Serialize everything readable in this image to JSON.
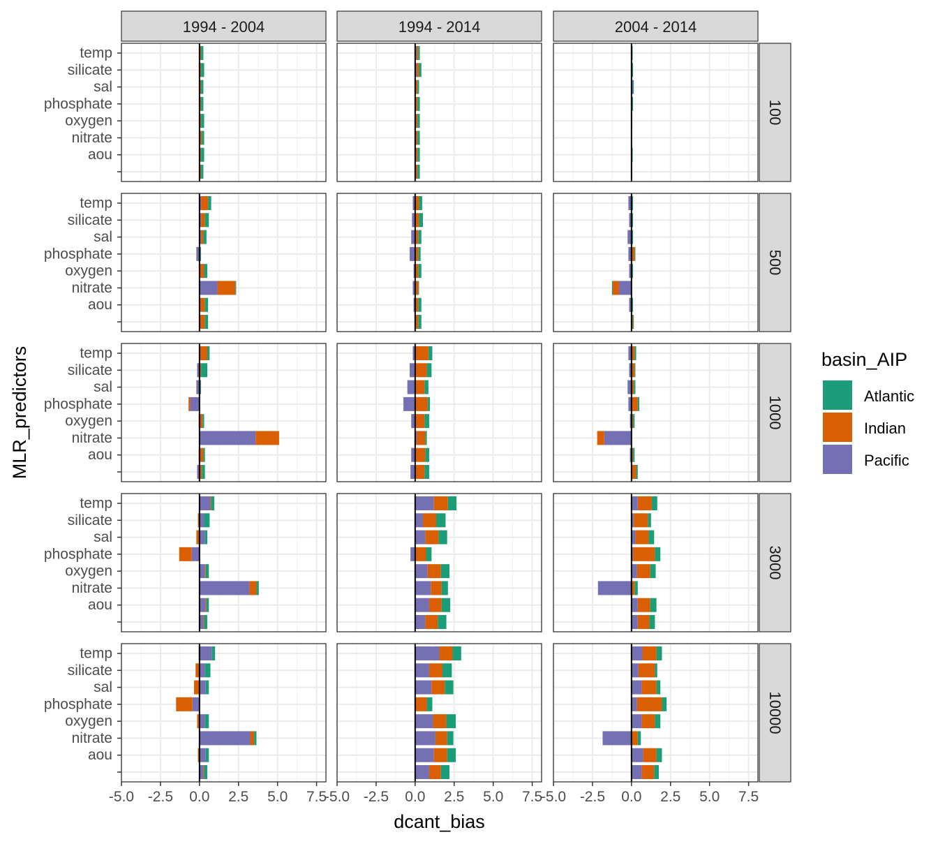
{
  "chart_data": {
    "type": "bar",
    "orientation": "horizontal",
    "stacked": true,
    "xlabel": "dcant_bias",
    "ylabel": "MLR_predictors",
    "xlim": [
      -5.0,
      8.1
    ],
    "xticks": [
      -5.0,
      -2.5,
      0.0,
      2.5,
      5.0,
      7.5
    ],
    "xtick_labels": [
      "-5.0",
      "-2.5",
      "0.0",
      "2.5",
      "5.0",
      "7.5"
    ],
    "grid": true,
    "legend": {
      "title": "basin_AIP",
      "position": "right"
    },
    "categories": [
      "temp",
      "silicate",
      "sal",
      "phosphate",
      "oxygen",
      "nitrate",
      "aou",
      ""
    ],
    "basins": [
      "Pacific",
      "Indian",
      "Atlantic"
    ],
    "colors": {
      "Atlantic": "#1B9E77",
      "Indian": "#D95F02",
      "Pacific": "#7570B3"
    },
    "col_labels": [
      "1994 - 2004",
      "1994 - 2014",
      "2004 - 2014"
    ],
    "row_labels": [
      "100",
      "500",
      "1000",
      "3000",
      "10000"
    ],
    "panels": [
      [
        {
          "Pacific": [
            0.05,
            0.05,
            0.05,
            0.05,
            0.05,
            0.05,
            0.05,
            0.05
          ],
          "Indian": [
            0.05,
            0.05,
            0.05,
            0.05,
            0.05,
            0.1,
            0.05,
            0.05
          ],
          "Atlantic": [
            0.15,
            0.2,
            0.15,
            0.15,
            0.2,
            0.15,
            0.2,
            0.15
          ]
        },
        {
          "Pacific": [
            0.1,
            0.1,
            0.05,
            0.05,
            0.05,
            0.05,
            0.05,
            0.05
          ],
          "Indian": [
            0.1,
            0.15,
            0.1,
            0.1,
            0.1,
            0.1,
            0.1,
            0.1
          ],
          "Atlantic": [
            0.1,
            0.15,
            0.1,
            0.15,
            0.15,
            0.15,
            0.15,
            0.15
          ]
        },
        {
          "Pacific": [
            0.0,
            0.0,
            0.1,
            0.0,
            0.0,
            0.0,
            0.0,
            0.0
          ],
          "Indian": [
            0.05,
            0.05,
            0.0,
            0.05,
            0.0,
            0.0,
            0.05,
            0.0
          ],
          "Atlantic": [
            0.02,
            0.05,
            0.05,
            0.05,
            0.05,
            0.0,
            0.02,
            0.05
          ]
        }
      ],
      [
        {
          "Pacific": [
            0.1,
            0.1,
            0.1,
            -0.2,
            0.05,
            1.15,
            0.05,
            0.05
          ],
          "Indian": [
            0.45,
            0.25,
            0.15,
            0.05,
            0.25,
            1.15,
            0.3,
            0.3
          ],
          "Atlantic": [
            0.2,
            0.25,
            0.2,
            0.05,
            0.2,
            0.05,
            0.2,
            0.2
          ]
        },
        {
          "Pacific": [
            -0.15,
            -0.2,
            -0.25,
            -0.35,
            -0.1,
            -0.15,
            -0.1,
            0.05
          ],
          "Indian": [
            0.25,
            0.25,
            0.2,
            0.2,
            0.2,
            0.2,
            0.2,
            0.15
          ],
          "Atlantic": [
            0.2,
            0.25,
            0.2,
            0.15,
            0.2,
            0.05,
            0.2,
            0.2
          ]
        },
        {
          "Pacific": [
            -0.2,
            -0.15,
            -0.25,
            -0.2,
            -0.15,
            -0.8,
            -0.15,
            0.05
          ],
          "Indian": [
            0.05,
            0.05,
            0.05,
            0.2,
            0.05,
            -0.4,
            0.05,
            0.05
          ],
          "Atlantic": [
            0.05,
            0.05,
            0.05,
            0.05,
            0.05,
            -0.05,
            0.05,
            0.05
          ]
        }
      ],
      [
        {
          "Pacific": [
            0.05,
            -0.15,
            -0.2,
            -0.6,
            -0.05,
            3.6,
            -0.05,
            -0.15
          ],
          "Indian": [
            0.45,
            0.1,
            0.05,
            -0.1,
            0.2,
            1.5,
            0.25,
            0.15
          ],
          "Atlantic": [
            0.15,
            0.4,
            0.05,
            0.0,
            0.1,
            0.0,
            0.1,
            0.2
          ]
        },
        {
          "Pacific": [
            -0.15,
            -0.35,
            -0.5,
            -0.75,
            -0.25,
            0.1,
            -0.25,
            -0.3
          ],
          "Indian": [
            0.85,
            0.75,
            0.6,
            0.8,
            0.6,
            0.55,
            0.65,
            0.6
          ],
          "Atlantic": [
            0.25,
            0.3,
            0.25,
            0.15,
            0.3,
            0.1,
            0.25,
            0.3
          ]
        },
        {
          "Pacific": [
            -0.2,
            -0.15,
            -0.25,
            -0.2,
            -0.1,
            -1.75,
            -0.1,
            0.0
          ],
          "Indian": [
            0.2,
            0.2,
            0.15,
            0.4,
            0.1,
            -0.45,
            0.1,
            0.3
          ],
          "Atlantic": [
            0.1,
            0.05,
            0.1,
            0.1,
            0.1,
            0.0,
            0.1,
            0.1
          ]
        }
      ],
      [
        {
          "Pacific": [
            0.7,
            0.3,
            0.35,
            -0.5,
            0.35,
            3.2,
            0.4,
            0.25
          ],
          "Indian": [
            0.05,
            -0.1,
            -0.2,
            -0.8,
            0.05,
            0.45,
            0.05,
            0.05
          ],
          "Atlantic": [
            0.2,
            0.35,
            0.15,
            0.0,
            0.2,
            0.15,
            0.15,
            0.2
          ]
        },
        {
          "Pacific": [
            1.2,
            0.5,
            0.65,
            -0.3,
            0.8,
            1.0,
            0.9,
            0.65
          ],
          "Indian": [
            0.9,
            0.85,
            0.85,
            0.7,
            0.85,
            0.7,
            0.8,
            0.8
          ],
          "Atlantic": [
            0.55,
            0.6,
            0.55,
            0.35,
            0.55,
            0.4,
            0.55,
            0.55
          ]
        },
        {
          "Pacific": [
            0.4,
            0.15,
            0.25,
            0.1,
            0.35,
            -2.15,
            0.4,
            0.4
          ],
          "Indian": [
            0.9,
            0.9,
            0.85,
            1.4,
            0.85,
            0.2,
            0.8,
            0.75
          ],
          "Atlantic": [
            0.35,
            0.2,
            0.35,
            0.35,
            0.35,
            0.2,
            0.4,
            0.35
          ]
        }
      ],
      [
        {
          "Pacific": [
            0.8,
            0.35,
            0.4,
            -0.45,
            0.35,
            3.25,
            0.4,
            0.25
          ],
          "Indian": [
            -0.05,
            -0.25,
            -0.35,
            -1.05,
            -0.15,
            0.25,
            -0.1,
            0.05
          ],
          "Atlantic": [
            0.2,
            0.35,
            0.2,
            0.0,
            0.25,
            0.15,
            0.2,
            0.2
          ]
        },
        {
          "Pacific": [
            1.55,
            0.9,
            1.05,
            0.05,
            1.15,
            1.3,
            1.2,
            0.9
          ],
          "Indian": [
            0.85,
            0.85,
            0.85,
            0.7,
            0.85,
            0.75,
            0.85,
            0.75
          ],
          "Atlantic": [
            0.55,
            0.6,
            0.55,
            0.35,
            0.6,
            0.4,
            0.55,
            0.55
          ]
        },
        {
          "Pacific": [
            0.7,
            0.45,
            0.65,
            0.35,
            0.65,
            -1.85,
            0.75,
            0.65
          ],
          "Indian": [
            0.9,
            1.05,
            0.95,
            1.6,
            0.85,
            0.4,
            0.85,
            0.8
          ],
          "Atlantic": [
            0.35,
            0.15,
            0.25,
            0.3,
            0.35,
            0.2,
            0.35,
            0.3
          ]
        }
      ]
    ]
  }
}
